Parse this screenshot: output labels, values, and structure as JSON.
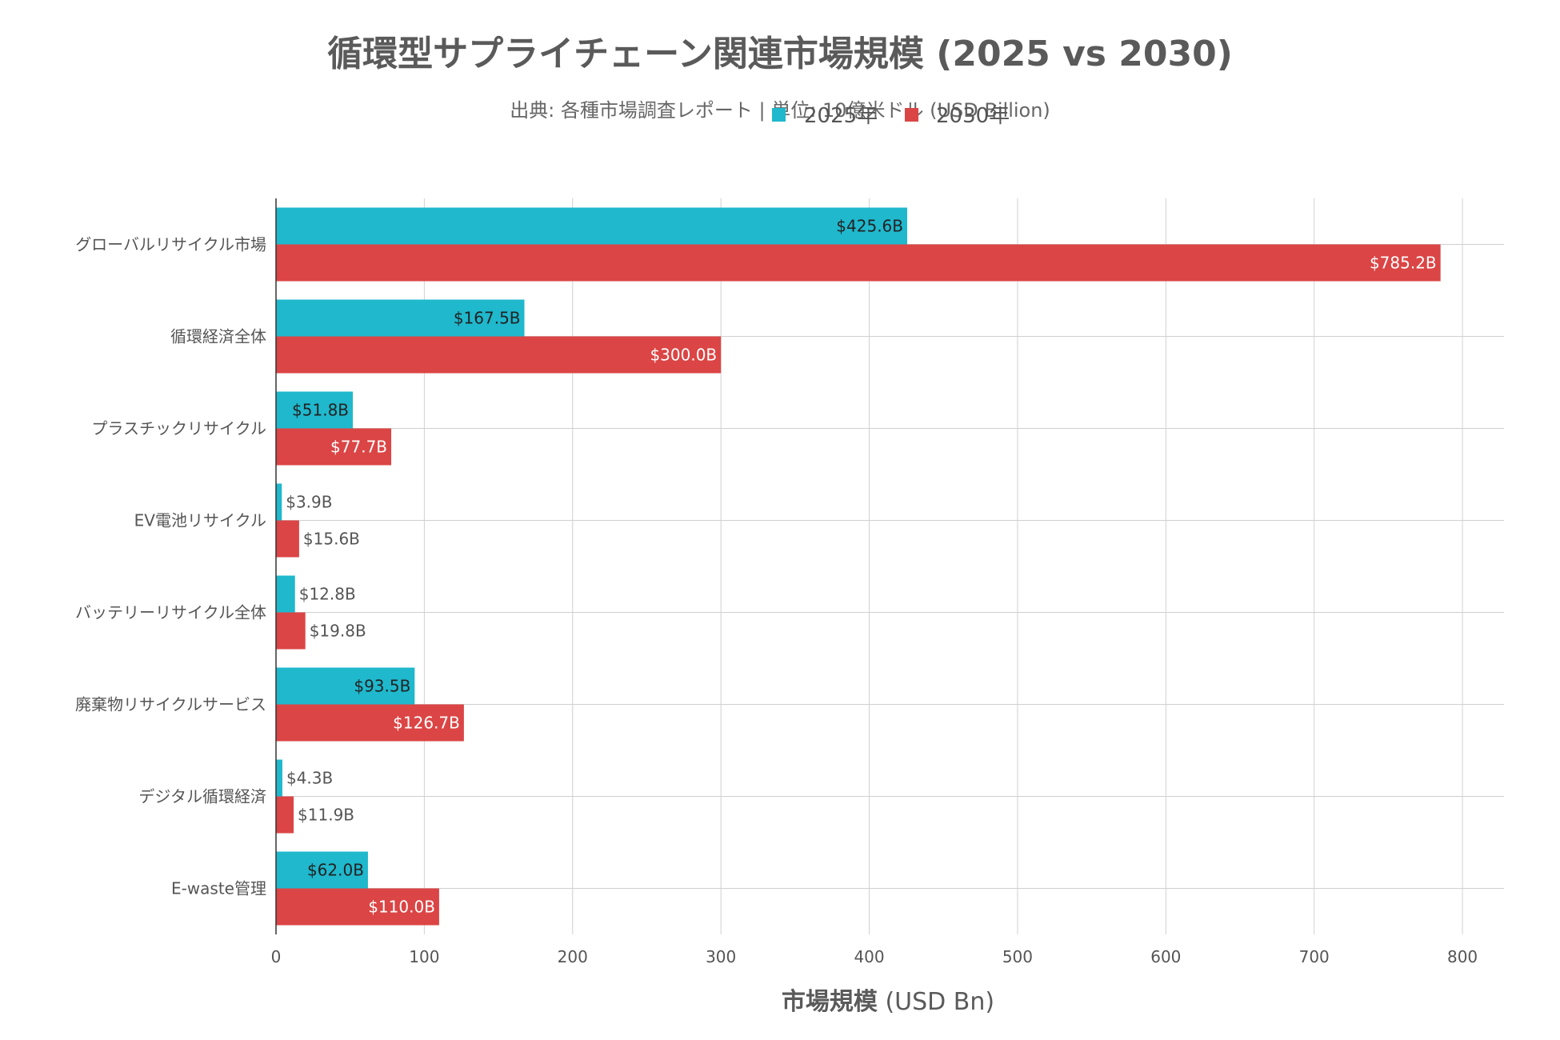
{
  "chart_data": {
    "type": "bar",
    "orientation": "horizontal",
    "title": "循環型サプライチェーン関連市場規模 (2025 vs 2030)",
    "subtitle": "出典: 各種市場調査レポート | 単位: 10億米ドル (USD Billion)",
    "xlabel_bold": "市場規模",
    "xlabel_rest": " (USD Bn)",
    "ylabel": "",
    "xlim": [
      0,
      828
    ],
    "xticks": [
      0,
      100,
      200,
      300,
      400,
      500,
      600,
      700,
      800
    ],
    "grid": true,
    "legend_position": "top-center",
    "categories": [
      "グローバルリサイクル市場",
      "循環経済全体",
      "プラスチックリサイクル",
      "EV電池リサイクル",
      "バッテリーリサイクル全体",
      "廃棄物リサイクルサービス",
      "デジタル循環経済",
      "E-waste管理"
    ],
    "series": [
      {
        "name": "2025年",
        "color": "#1fb8cd",
        "values": [
          425.6,
          167.5,
          51.8,
          3.9,
          12.8,
          93.5,
          4.3,
          62.0
        ],
        "labels": [
          "$425.6B",
          "$167.5B",
          "$51.8B",
          "$3.9B",
          "$12.8B",
          "$93.5B",
          "$4.3B",
          "$62.0B"
        ]
      },
      {
        "name": "2030年",
        "color": "#db4545",
        "values": [
          785.2,
          300.0,
          77.7,
          15.6,
          19.8,
          126.7,
          11.9,
          110.0
        ],
        "labels": [
          "$785.2B",
          "$300.0B",
          "$77.7B",
          "$15.6B",
          "$19.8B",
          "$126.7B",
          "$11.9B",
          "$110.0B"
        ]
      }
    ]
  }
}
